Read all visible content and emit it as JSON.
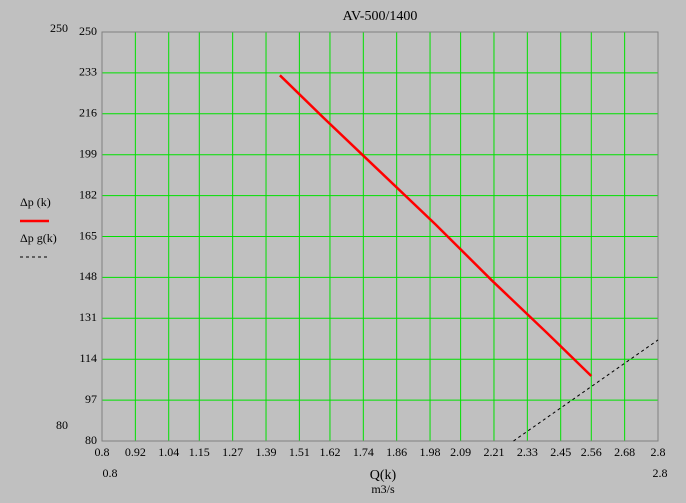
{
  "chart_data": {
    "type": "line",
    "title": "AV-500/1400",
    "xlabel": "Q(k)",
    "xunits": "m3/s",
    "xlim": [
      0.8,
      2.8
    ],
    "ylim": [
      80,
      250
    ],
    "xticks": [
      0.8,
      0.92,
      1.04,
      1.15,
      1.27,
      1.39,
      1.51,
      1.62,
      1.74,
      1.86,
      1.98,
      2.09,
      2.21,
      2.33,
      2.45,
      2.56,
      2.68,
      2.8
    ],
    "yticks": [
      80,
      97,
      114,
      131,
      148,
      165,
      182,
      199,
      216,
      233,
      250
    ],
    "grid": true,
    "grid_color": "#00e000",
    "series": [
      {
        "name": "Δp  (k)",
        "color": "#ff0000",
        "dash": false,
        "x": [
          1.44,
          1.6,
          1.8,
          2.0,
          2.2,
          2.4,
          2.56
        ],
        "values": [
          232,
          214,
          192,
          170,
          147,
          125,
          107
        ]
      },
      {
        "name": "Δp g(k)",
        "color": "#000000",
        "dash": true,
        "x": [
          2.28,
          2.8
        ],
        "values": [
          80,
          122
        ]
      }
    ]
  }
}
